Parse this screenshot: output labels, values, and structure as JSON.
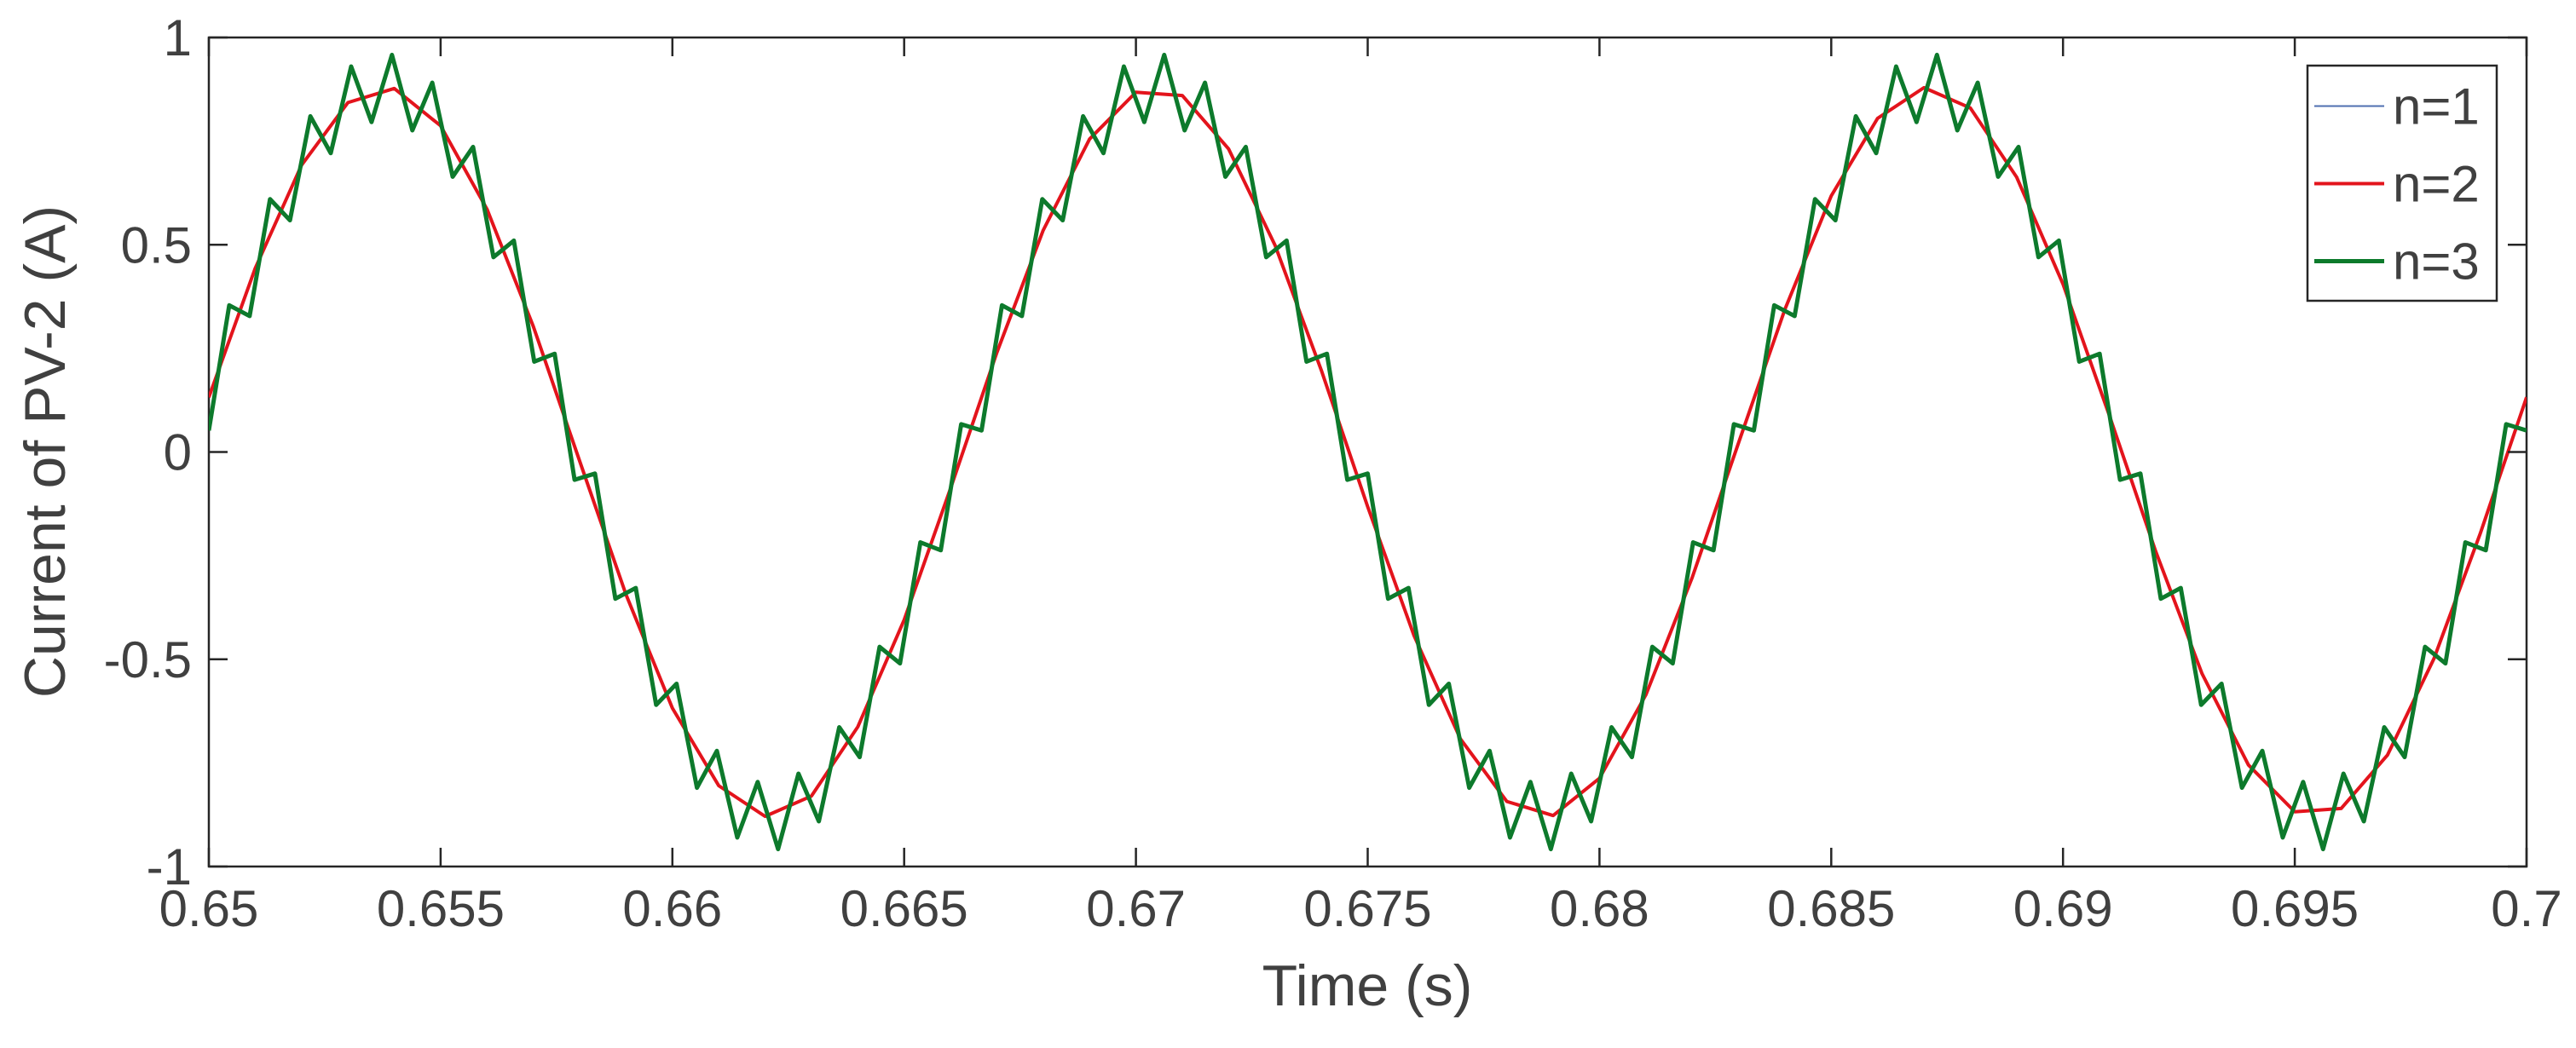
{
  "chart_data": {
    "type": "line",
    "xlabel": "Time (s)",
    "ylabel": "Current of PV-2 (A)",
    "x": [
      0.65,
      0.651,
      0.652,
      0.653,
      0.654,
      0.655,
      0.656,
      0.657,
      0.658,
      0.659,
      0.66,
      0.661,
      0.662,
      0.663,
      0.664,
      0.665,
      0.666,
      0.667,
      0.668,
      0.669,
      0.67,
      0.671,
      0.672,
      0.673,
      0.674,
      0.675,
      0.676,
      0.677,
      0.678,
      0.679,
      0.68,
      0.681,
      0.682,
      0.683,
      0.684,
      0.685,
      0.686,
      0.687,
      0.688,
      0.689,
      0.69,
      0.691,
      0.692,
      0.693,
      0.694,
      0.695,
      0.696,
      0.697,
      0.698,
      0.699,
      0.7
    ],
    "series": [
      {
        "name": "n=1",
        "color": "#4f6fb0",
        "width": 2,
        "values": [
          0.132,
          0.443,
          0.692,
          0.843,
          0.877,
          0.787,
          0.586,
          0.303,
          -0.022,
          -0.344,
          -0.618,
          -0.805,
          -0.879,
          -0.83,
          -0.663,
          -0.405,
          -0.088,
          0.24,
          0.535,
          0.755,
          0.868,
          0.86,
          0.731,
          0.499,
          0.197,
          -0.132,
          -0.443,
          -0.692,
          -0.843,
          -0.877,
          -0.787,
          -0.586,
          -0.303,
          0.022,
          0.344,
          0.618,
          0.805,
          0.879,
          0.83,
          0.663,
          0.405,
          0.088,
          -0.24,
          -0.535,
          -0.755,
          -0.868,
          -0.86,
          -0.731,
          -0.499,
          -0.197,
          0.132
        ]
      },
      {
        "name": "n=2",
        "color": "#e3141c",
        "width": 4,
        "values": [
          0.132,
          0.443,
          0.692,
          0.843,
          0.877,
          0.787,
          0.586,
          0.303,
          -0.022,
          -0.344,
          -0.618,
          -0.805,
          -0.879,
          -0.83,
          -0.663,
          -0.405,
          -0.088,
          0.24,
          0.535,
          0.755,
          0.868,
          0.86,
          0.731,
          0.499,
          0.197,
          -0.132,
          -0.443,
          -0.692,
          -0.843,
          -0.877,
          -0.787,
          -0.586,
          -0.303,
          0.022,
          0.344,
          0.618,
          0.805,
          0.879,
          0.83,
          0.663,
          0.405,
          0.088,
          -0.24,
          -0.535,
          -0.755,
          -0.868,
          -0.86,
          -0.731,
          -0.499,
          -0.197,
          0.132
        ]
      },
      {
        "name": "n=3",
        "color": "#0d7a2c",
        "width": 5,
        "x": [
          0.65,
          0.65044,
          0.65088,
          0.65132,
          0.65175,
          0.65219,
          0.65263,
          0.65307,
          0.65351,
          0.65395,
          0.65439,
          0.65482,
          0.65526,
          0.6557,
          0.65614,
          0.65658,
          0.65702,
          0.65746,
          0.65789,
          0.65833,
          0.65877,
          0.65921,
          0.65965,
          0.66009,
          0.66053,
          0.66096,
          0.6614,
          0.66184,
          0.66228,
          0.66272,
          0.66316,
          0.6636,
          0.66404,
          0.66447,
          0.66491,
          0.66535,
          0.66579,
          0.66623,
          0.66667,
          0.66711,
          0.66754,
          0.66798,
          0.66842,
          0.66886,
          0.6693,
          0.66974,
          0.67018,
          0.67061,
          0.67105,
          0.67149,
          0.67193,
          0.67237,
          0.67281,
          0.67325,
          0.67368,
          0.67412,
          0.67456,
          0.675,
          0.67544,
          0.67588,
          0.67632,
          0.67675,
          0.67719,
          0.67763,
          0.67807,
          0.67851,
          0.67895,
          0.67939,
          0.67982,
          0.68026,
          0.6807,
          0.68114,
          0.68158,
          0.68202,
          0.68246,
          0.6829,
          0.68333,
          0.68377,
          0.68421,
          0.68465,
          0.68509,
          0.68553,
          0.68597,
          0.6864,
          0.68684,
          0.68728,
          0.68772,
          0.68816,
          0.6886,
          0.68904,
          0.68947,
          0.68991,
          0.69035,
          0.69079,
          0.69123,
          0.69167,
          0.69211,
          0.69254,
          0.69298,
          0.69342,
          0.69386,
          0.6943,
          0.69474,
          0.69518,
          0.69561,
          0.69605,
          0.69649,
          0.69693,
          0.69737,
          0.69781,
          0.69825,
          0.69868,
          0.69912,
          0.69956,
          0.7
        ],
        "values": [
          0.052,
          0.354,
          0.328,
          0.61,
          0.559,
          0.81,
          0.721,
          0.93,
          0.796,
          0.958,
          0.776,
          0.891,
          0.664,
          0.736,
          0.47,
          0.51,
          0.218,
          0.237,
          -0.067,
          -0.052,
          -0.354,
          -0.328,
          -0.61,
          -0.559,
          -0.81,
          -0.721,
          -0.93,
          -0.796,
          -0.958,
          -0.776,
          -0.891,
          -0.664,
          -0.736,
          -0.47,
          -0.51,
          -0.218,
          -0.237,
          0.067,
          0.052,
          0.354,
          0.328,
          0.61,
          0.559,
          0.81,
          0.721,
          0.93,
          0.796,
          0.958,
          0.776,
          0.891,
          0.664,
          0.736,
          0.47,
          0.51,
          0.218,
          0.237,
          -0.067,
          -0.052,
          -0.354,
          -0.328,
          -0.61,
          -0.559,
          -0.81,
          -0.721,
          -0.93,
          -0.796,
          -0.958,
          -0.776,
          -0.891,
          -0.664,
          -0.736,
          -0.47,
          -0.51,
          -0.218,
          -0.237,
          0.067,
          0.052,
          0.354,
          0.328,
          0.61,
          0.559,
          0.81,
          0.721,
          0.93,
          0.796,
          0.958,
          0.776,
          0.891,
          0.664,
          0.736,
          0.47,
          0.51,
          0.218,
          0.237,
          -0.067,
          -0.052,
          -0.354,
          -0.328,
          -0.61,
          -0.559,
          -0.81,
          -0.721,
          -0.93,
          -0.796,
          -0.958,
          -0.776,
          -0.891,
          -0.664,
          -0.736,
          -0.47,
          -0.51,
          -0.218,
          -0.237,
          0.067,
          0.052
        ]
      }
    ],
    "xlim": [
      0.65,
      0.7
    ],
    "xticks": [
      0.65,
      0.655,
      0.66,
      0.665,
      0.67,
      0.675,
      0.68,
      0.685,
      0.69,
      0.695,
      0.7
    ],
    "ylim": [
      -1,
      1
    ],
    "yticks": [
      -1,
      -0.5,
      0,
      0.5,
      1
    ],
    "grid": false,
    "legend": "upper right"
  }
}
